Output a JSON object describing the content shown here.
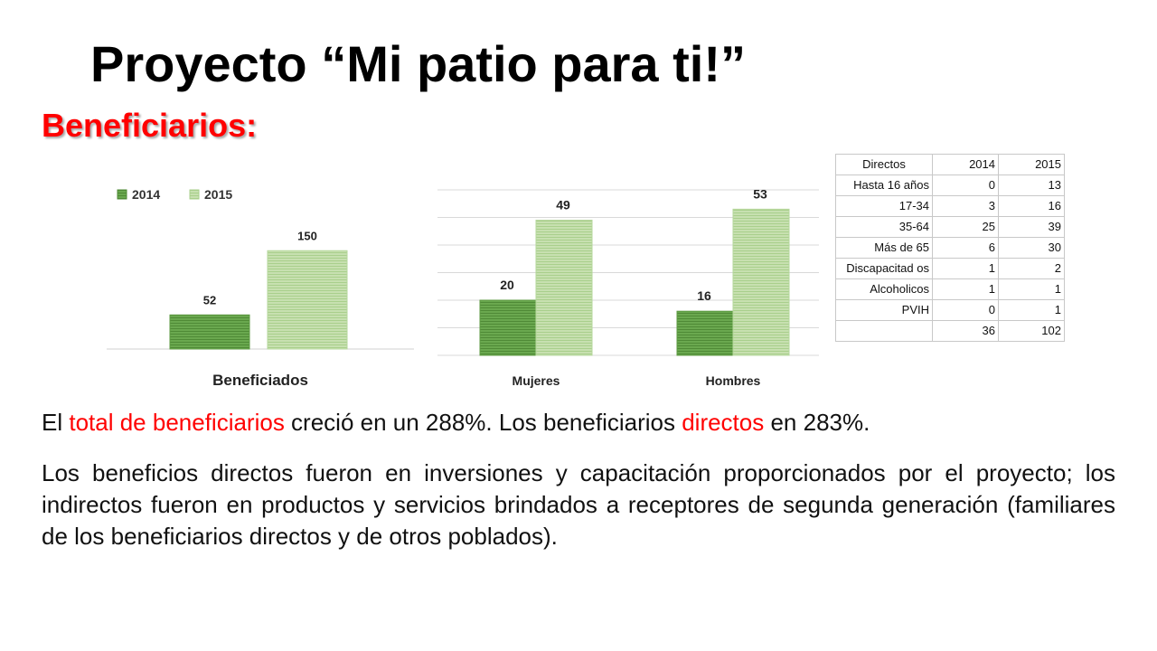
{
  "slide": {
    "title": "Proyecto “Mi patio para ti!”",
    "subtitle": "Beneficiarios:"
  },
  "paragraph1": {
    "p1": "El ",
    "p2": "total de beneficiarios",
    "p3": " creció en un 288%. Los beneficiarios ",
    "p4": "directos",
    "p5": " en 283%."
  },
  "paragraph2": "Los beneficios directos fueron en inversiones y capacitación proporcionados por el proyecto; los indirectos fueron en productos y servicios brindados a receptores de segunda generación (familiares de los beneficiarios directos y de otros poblados).",
  "colors": {
    "series_2014": "#6aa84f",
    "series_2015": "#c7e0b0",
    "highlight": "#ff0000"
  },
  "chart_data": [
    {
      "type": "bar",
      "categories": [
        "Beneficiados"
      ],
      "series": [
        {
          "name": "2014",
          "values": [
            52
          ]
        },
        {
          "name": "2015",
          "values": [
            150
          ]
        }
      ],
      "data_labels": true,
      "legend": "top-left",
      "grid": false
    },
    {
      "type": "bar",
      "categories": [
        "Mujeres",
        "Hombres"
      ],
      "series": [
        {
          "values": [
            20,
            16
          ]
        },
        {
          "values": [
            49,
            53
          ]
        }
      ],
      "data_labels": true,
      "grid": true
    },
    {
      "type": "table",
      "header": [
        "Directos",
        "2014",
        "2015"
      ],
      "rows": [
        [
          "Hasta 16 años",
          "0",
          "13"
        ],
        [
          "17-34",
          "3",
          "16"
        ],
        [
          "35-64",
          "25",
          "39"
        ],
        [
          "Más de 65",
          "6",
          "30"
        ],
        [
          "Discapacitad os",
          "1",
          "2"
        ],
        [
          "Alcoholicos",
          "1",
          "1"
        ],
        [
          "PVIH",
          "0",
          "1"
        ],
        [
          "",
          "36",
          "102"
        ]
      ]
    }
  ]
}
